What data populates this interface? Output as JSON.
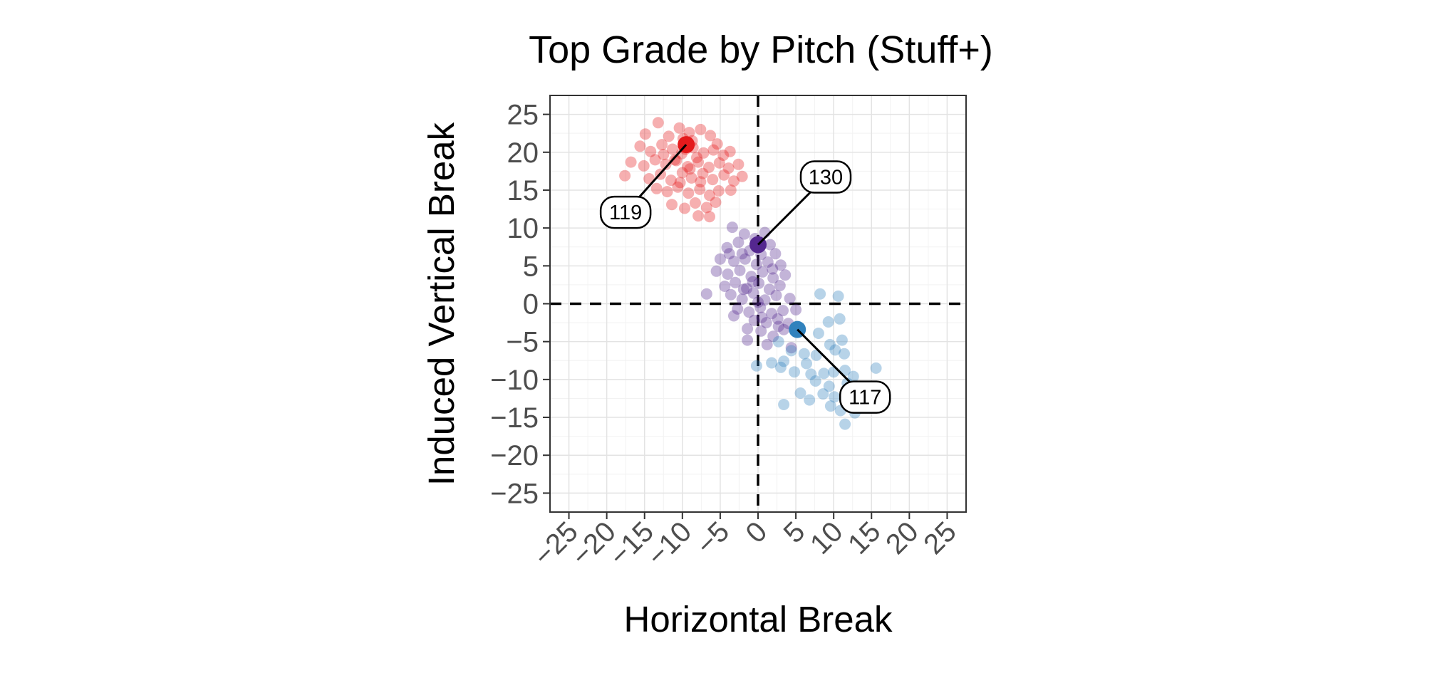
{
  "chart_data": {
    "type": "scatter",
    "title": "Top Grade by Pitch (Stuff+)",
    "xlabel": "Horizontal Break",
    "ylabel": "Induced Vertical Break",
    "xlim": [
      -27.5,
      27.5
    ],
    "ylim": [
      -27.5,
      27.5
    ],
    "x_ticks": [
      -25,
      -20,
      -15,
      -10,
      -5,
      0,
      5,
      10,
      15,
      20,
      25
    ],
    "y_ticks": [
      -25,
      -20,
      -15,
      -10,
      -5,
      0,
      5,
      10,
      15,
      20,
      25
    ],
    "x_tick_labels": [
      "−25",
      "−20",
      "−15",
      "−10",
      "−5",
      "0",
      "5",
      "10",
      "15",
      "20",
      "25"
    ],
    "y_tick_labels": [
      "−25",
      "−20",
      "−15",
      "−10",
      "−5",
      "0",
      "5",
      "10",
      "15",
      "20",
      "25"
    ],
    "grid": true,
    "reference_lines": {
      "x": 0,
      "y": 0
    },
    "series": [
      {
        "color": "#e41a1c",
        "highlight": {
          "x": -9.5,
          "y": 21,
          "label": "119"
        },
        "points": [
          [
            -14.9,
            22.4
          ],
          [
            -13.2,
            23.9
          ],
          [
            -11.8,
            22.1
          ],
          [
            -10.4,
            23.2
          ],
          [
            -9.1,
            22.6
          ],
          [
            -7.6,
            23.0
          ],
          [
            -6.3,
            22.2
          ],
          [
            -5.4,
            21.1
          ],
          [
            -15.6,
            20.8
          ],
          [
            -14.2,
            20.1
          ],
          [
            -12.7,
            21.0
          ],
          [
            -11.3,
            20.4
          ],
          [
            -10.1,
            19.8
          ],
          [
            -8.6,
            20.6
          ],
          [
            -7.2,
            19.9
          ],
          [
            -5.9,
            20.3
          ],
          [
            -4.6,
            19.6
          ],
          [
            -3.7,
            20.1
          ],
          [
            -16.8,
            18.7
          ],
          [
            -15.1,
            18.2
          ],
          [
            -13.6,
            19.0
          ],
          [
            -12.2,
            18.4
          ],
          [
            -10.8,
            18.9
          ],
          [
            -9.3,
            18.1
          ],
          [
            -7.9,
            18.7
          ],
          [
            -6.5,
            18.0
          ],
          [
            -5.1,
            18.6
          ],
          [
            -3.9,
            17.9
          ],
          [
            -2.6,
            18.4
          ],
          [
            -17.6,
            16.9
          ],
          [
            -14.4,
            16.5
          ],
          [
            -12.9,
            17.1
          ],
          [
            -11.5,
            16.3
          ],
          [
            -10.0,
            17.3
          ],
          [
            -8.8,
            16.6
          ],
          [
            -7.3,
            17.2
          ],
          [
            -6.0,
            16.4
          ],
          [
            -4.5,
            17.0
          ],
          [
            -3.2,
            16.2
          ],
          [
            -2.1,
            16.8
          ],
          [
            -13.4,
            15.2
          ],
          [
            -12.0,
            14.8
          ],
          [
            -10.6,
            15.4
          ],
          [
            -9.2,
            14.6
          ],
          [
            -7.7,
            15.1
          ],
          [
            -6.4,
            14.3
          ],
          [
            -5.2,
            14.9
          ],
          [
            -3.6,
            15.0
          ],
          [
            -11.4,
            13.1
          ],
          [
            -9.7,
            12.6
          ],
          [
            -8.3,
            13.3
          ],
          [
            -6.8,
            12.7
          ],
          [
            -5.6,
            13.4
          ],
          [
            -7.9,
            11.6
          ],
          [
            -6.4,
            11.5
          ],
          [
            -9.9,
            21.8
          ],
          [
            -8.7,
            21.5
          ],
          [
            -11.0,
            19.0
          ],
          [
            -9.6,
            20.4
          ],
          [
            -8.1,
            19.3
          ],
          [
            -9.0,
            17.8
          ],
          [
            -7.6,
            16.1
          ],
          [
            -10.3,
            16.0
          ],
          [
            -12.5,
            19.7
          ]
        ]
      },
      {
        "color": "#54278f",
        "highlight": {
          "x": 0,
          "y": 7.8,
          "label": "130"
        },
        "points": [
          [
            -3.4,
            10.1
          ],
          [
            -1.8,
            9.2
          ],
          [
            -0.4,
            8.6
          ],
          [
            0.9,
            9.4
          ],
          [
            1.6,
            7.8
          ],
          [
            -2.6,
            8.1
          ],
          [
            -4.1,
            7.4
          ],
          [
            -1.1,
            7.0
          ],
          [
            0.4,
            6.5
          ],
          [
            2.3,
            6.6
          ],
          [
            -5.0,
            5.9
          ],
          [
            -3.2,
            5.6
          ],
          [
            -1.7,
            5.9
          ],
          [
            -0.2,
            5.2
          ],
          [
            1.3,
            5.5
          ],
          [
            3.0,
            5.1
          ],
          [
            -5.5,
            4.3
          ],
          [
            -4.0,
            3.9
          ],
          [
            -2.4,
            4.4
          ],
          [
            -0.9,
            3.6
          ],
          [
            0.6,
            4.2
          ],
          [
            2.0,
            3.4
          ],
          [
            3.6,
            3.8
          ],
          [
            -4.4,
            2.3
          ],
          [
            -3.0,
            2.8
          ],
          [
            -1.5,
            2.0
          ],
          [
            0.1,
            2.7
          ],
          [
            1.5,
            1.9
          ],
          [
            2.9,
            2.4
          ],
          [
            -3.6,
            1.2
          ],
          [
            -2.1,
            0.6
          ],
          [
            -0.6,
            1.4
          ],
          [
            0.9,
            0.5
          ],
          [
            2.4,
            1.1
          ],
          [
            4.2,
            0.7
          ],
          [
            -6.8,
            1.3
          ],
          [
            -2.7,
            -0.7
          ],
          [
            -1.2,
            -1.1
          ],
          [
            0.3,
            -0.5
          ],
          [
            1.8,
            -1.3
          ],
          [
            3.3,
            -0.9
          ],
          [
            5.0,
            -0.8
          ],
          [
            -3.2,
            -1.6
          ],
          [
            -0.5,
            -2.2
          ],
          [
            1.1,
            -2.5
          ],
          [
            2.6,
            -2.0
          ],
          [
            4.0,
            -2.6
          ],
          [
            -1.4,
            -3.3
          ],
          [
            0.4,
            -3.6
          ],
          [
            2.0,
            -4.3
          ],
          [
            3.4,
            -3.4
          ],
          [
            -1.4,
            -4.8
          ],
          [
            1.2,
            -5.4
          ],
          [
            4.4,
            -5.8
          ],
          [
            -2.1,
            6.6
          ],
          [
            -0.7,
            2.9
          ],
          [
            1.9,
            4.6
          ],
          [
            -1.9,
            1.9
          ],
          [
            0.5,
            -1.8
          ],
          [
            2.7,
            -3.0
          ],
          [
            -3.8,
            6.6
          ],
          [
            0.0,
            0.2
          ]
        ]
      },
      {
        "color": "#3182bd",
        "highlight": {
          "x": 5.2,
          "y": -3.4,
          "label": "117"
        },
        "points": [
          [
            8.2,
            1.3
          ],
          [
            10.6,
            1.0
          ],
          [
            9.3,
            -2.4
          ],
          [
            10.8,
            -2.0
          ],
          [
            8.0,
            -3.9
          ],
          [
            9.5,
            -5.4
          ],
          [
            11.1,
            -4.8
          ],
          [
            10.2,
            -6.1
          ],
          [
            11.4,
            -6.6
          ],
          [
            2.7,
            -5.0
          ],
          [
            4.4,
            -6.2
          ],
          [
            6.1,
            -6.6
          ],
          [
            7.7,
            -6.8
          ],
          [
            3.4,
            -7.6
          ],
          [
            6.4,
            -7.9
          ],
          [
            -0.2,
            -8.2
          ],
          [
            1.8,
            -7.8
          ],
          [
            3.0,
            -8.4
          ],
          [
            4.8,
            -9.0
          ],
          [
            7.0,
            -9.3
          ],
          [
            8.7,
            -9.2
          ],
          [
            10.0,
            -9.0
          ],
          [
            11.5,
            -8.8
          ],
          [
            12.6,
            -9.6
          ],
          [
            15.6,
            -8.5
          ],
          [
            7.6,
            -10.2
          ],
          [
            9.4,
            -10.9
          ],
          [
            11.8,
            -10.5
          ],
          [
            13.4,
            -10.9
          ],
          [
            5.6,
            -11.8
          ],
          [
            6.8,
            -12.7
          ],
          [
            8.6,
            -11.9
          ],
          [
            10.1,
            -12.3
          ],
          [
            12.0,
            -12.6
          ],
          [
            13.8,
            -13.2
          ],
          [
            3.4,
            -13.3
          ],
          [
            9.6,
            -13.5
          ],
          [
            10.9,
            -14.1
          ],
          [
            11.5,
            -15.9
          ],
          [
            12.8,
            -14.4
          ]
        ]
      }
    ]
  }
}
